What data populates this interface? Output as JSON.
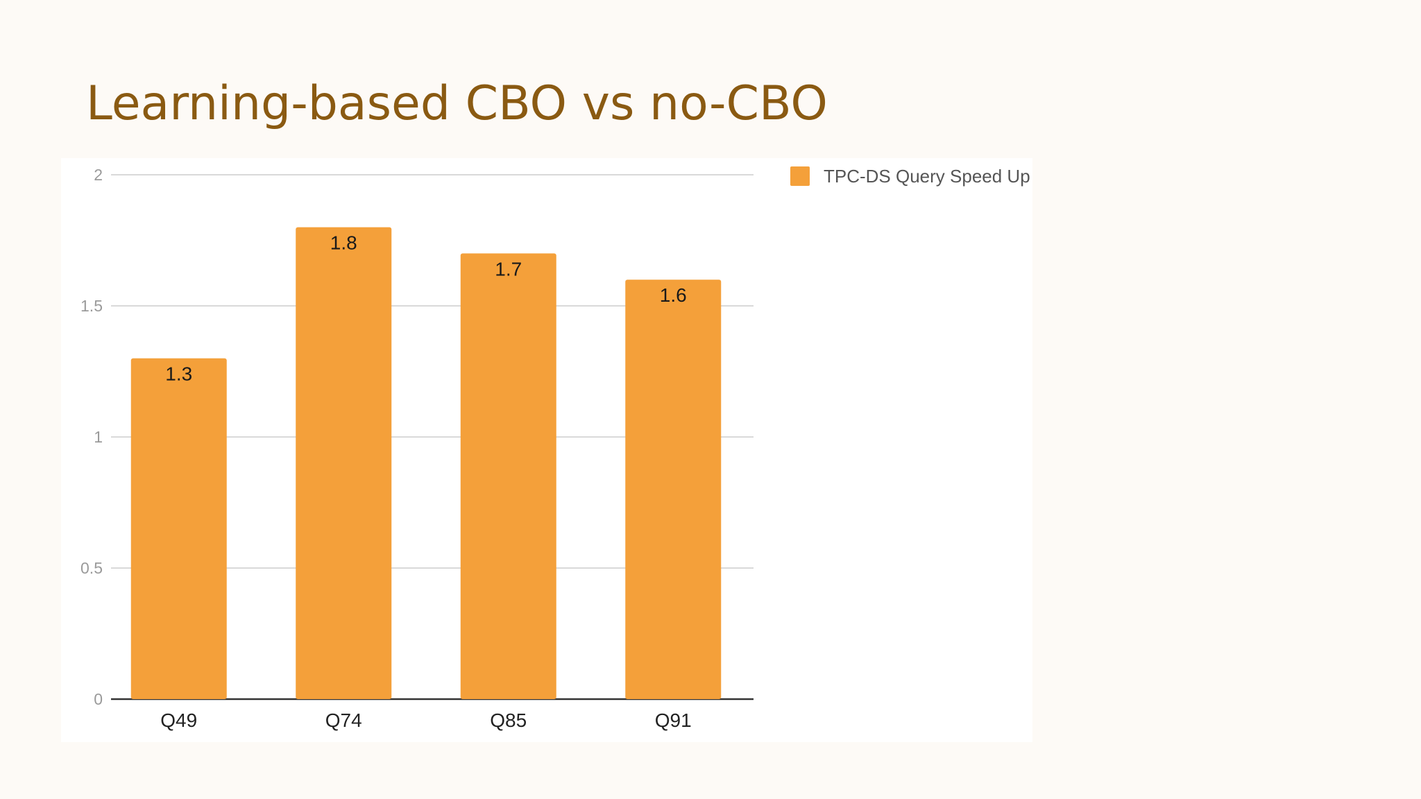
{
  "slide": {
    "title": "Learning-based CBO vs no-CBO"
  },
  "chart_data": {
    "type": "bar",
    "categories": [
      "Q49",
      "Q74",
      "Q85",
      "Q91"
    ],
    "series": [
      {
        "name": "TPC-DS Query Speed Up",
        "values": [
          1.3,
          1.8,
          1.7,
          1.6
        ],
        "color": "#f4a03a"
      }
    ],
    "data_labels": [
      "1.3",
      "1.8",
      "1.7",
      "1.6"
    ],
    "ylim": [
      0,
      2
    ],
    "yticks": [
      0,
      0.5,
      1,
      1.5,
      2
    ],
    "ytick_labels": [
      "0",
      "0.5",
      "1",
      "1.5",
      "2"
    ],
    "grid": true,
    "legend_position": "top-right",
    "gridline_color": "#d9d9d9",
    "axis_color": "#333333"
  }
}
